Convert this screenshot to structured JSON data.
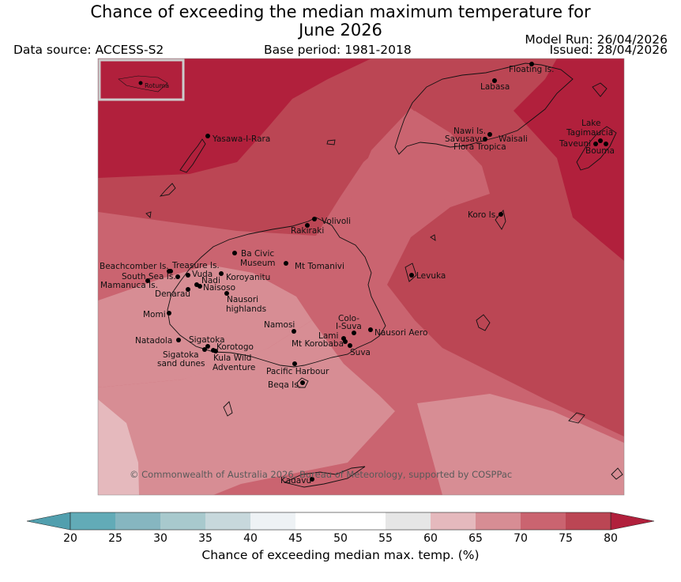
{
  "title_line1": "Chance of exceeding the median maximum temperature for",
  "title_line2": "June 2026",
  "data_source": "Data source: ACCESS-S2",
  "base_period": "Base period: 1981-2018",
  "model_run": "Model Run: 26/04/2026",
  "issued": "Issued: 28/04/2026",
  "copyright": "© Commonwealth of Australia 2026, Bureau of Meteorology, supported by COSPPac",
  "inset_label": "Rotuma",
  "places": [
    {
      "name": "Floating Is."
    },
    {
      "name": "Labasa"
    },
    {
      "name": "Nawi Is."
    },
    {
      "name": "Savusavu"
    },
    {
      "name": "Waisali"
    },
    {
      "name": "Flora Tropica"
    },
    {
      "name": "Lake"
    },
    {
      "name": "Tagimaucia"
    },
    {
      "name": "Taveuni"
    },
    {
      "name": "Bouma"
    },
    {
      "name": "Yasawa-I-Rara"
    },
    {
      "name": "Volivoli"
    },
    {
      "name": "Rakiraki"
    },
    {
      "name": "Koro Is."
    },
    {
      "name": "Ba Civic"
    },
    {
      "name": "Museum"
    },
    {
      "name": "Mt Tomanivi"
    },
    {
      "name": "Beachcomber Is."
    },
    {
      "name": "Treasure Is."
    },
    {
      "name": "South Sea Is."
    },
    {
      "name": "Vuda"
    },
    {
      "name": "Koroyanitu"
    },
    {
      "name": "Nadi"
    },
    {
      "name": "Mamanuca Is."
    },
    {
      "name": "Naisoso"
    },
    {
      "name": "Denarau"
    },
    {
      "name": "Levuka"
    },
    {
      "name": "Nausori"
    },
    {
      "name": "highlands"
    },
    {
      "name": "Momi"
    },
    {
      "name": "Colo-"
    },
    {
      "name": "I-Suva"
    },
    {
      "name": "Namosi"
    },
    {
      "name": "Nausori Aero"
    },
    {
      "name": "Lami"
    },
    {
      "name": "Natadola"
    },
    {
      "name": "Sigatoka"
    },
    {
      "name": "Mt Korobaba"
    },
    {
      "name": "Korotogo"
    },
    {
      "name": "Suva"
    },
    {
      "name": "Sigatoka"
    },
    {
      "name": "Kula Wild"
    },
    {
      "name": "sand dunes"
    },
    {
      "name": "Adventure"
    },
    {
      "name": "Pacific Harbour"
    },
    {
      "name": "Beqa Is."
    },
    {
      "name": "Kadavu"
    }
  ],
  "colorbar": {
    "title": "Chance of exceeding median max. temp. (%)",
    "ticks": [
      "20",
      "25",
      "30",
      "35",
      "40",
      "45",
      "50",
      "55",
      "60",
      "65",
      "70",
      "75",
      "80"
    ],
    "colors": [
      "#62abb7",
      "#86b6c0",
      "#a8c9cd",
      "#c7d8dc",
      "#eef2f5",
      "#ffffff",
      "#ffffff",
      "#e6e6e6",
      "#e5b9bd",
      "#d78d94",
      "#ca6470",
      "#bb4654"
    ],
    "under_color": "#519fae",
    "over_color": "#b1203c"
  },
  "map_colors": {
    "band_80": "#b1203c",
    "band_75": "#bb4654",
    "band_70": "#ca6470",
    "band_65": "#d78d94",
    "band_60": "#e5b9bd"
  }
}
